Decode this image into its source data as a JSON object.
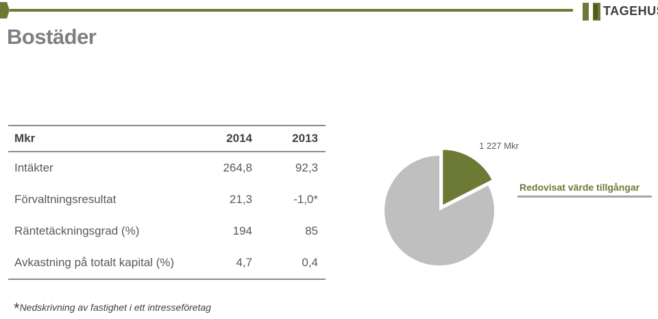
{
  "page": {
    "title": "Bostäder"
  },
  "logo": {
    "text": "TAGEHUS"
  },
  "table": {
    "headers": [
      "Mkr",
      "2014",
      "2013"
    ],
    "rows": [
      [
        "Intäkter",
        "264,8",
        "92,3"
      ],
      [
        "Förvaltningsresultat",
        "21,3",
        "-1,0*"
      ],
      [
        "Räntetäckningsgrad (%)",
        "194",
        "85"
      ],
      [
        "Avkastning på totalt kapital (%)",
        "4,7",
        "0,4"
      ]
    ]
  },
  "footnote": {
    "star": "*",
    "text": "Nedskrivning av fastighet i ett intresseföretag"
  },
  "chart_data": {
    "type": "pie",
    "title": "",
    "slices": [
      {
        "label": "Redovisat värde tillgångar",
        "value": 1227,
        "unit": "Mkr",
        "value_label": "1 227 Mkr",
        "color": "#6d7a35",
        "exploded": true
      },
      {
        "label": "",
        "value": 5800,
        "color": "#bfbfbf"
      }
    ],
    "legend": {
      "label": "Redovisat värde tillgångar"
    }
  },
  "colors": {
    "accent": "#6d7a35",
    "grey_slice": "#bfbfbf",
    "title": "#7f7f7f"
  }
}
